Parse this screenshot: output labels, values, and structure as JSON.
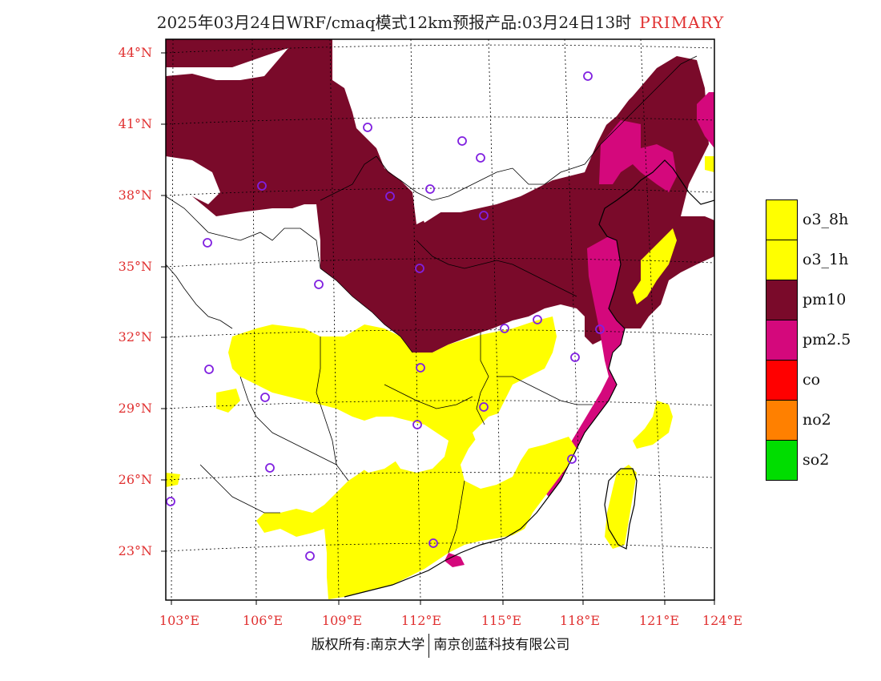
{
  "title": {
    "text": "2025年03月24日WRF/cmaq模式12km预报产品:03月24日13时",
    "primary": "PRIMARY"
  },
  "axes": {
    "lat_labels": [
      "44°N",
      "41°N",
      "38°N",
      "35°N",
      "32°N",
      "29°N",
      "26°N",
      "23°N"
    ],
    "lon_labels": [
      "103°E",
      "106°E",
      "109°E",
      "112°E",
      "115°E",
      "118°E",
      "121°E",
      "124°E"
    ]
  },
  "legend": {
    "items": [
      {
        "label": "o3_8h",
        "color": "#ffff00"
      },
      {
        "label": "o3_1h",
        "color": "#ffff00"
      },
      {
        "label": "pm10",
        "color": "#7a0a2a"
      },
      {
        "label": "pm2.5",
        "color": "#d4087c"
      },
      {
        "label": "co",
        "color": "#ff0000"
      },
      {
        "label": "no2",
        "color": "#ff8000"
      },
      {
        "label": "so2",
        "color": "#00dd00"
      }
    ]
  },
  "footer": {
    "left": "版权所有:南京大学",
    "right": "南京创蓝科技有限公司"
  },
  "colors": {
    "pm10": "#7a0a2a",
    "pm25": "#d4087c",
    "o3": "#ffff00",
    "station_marker": "#8020e0",
    "axis_label": "#e03030"
  }
}
